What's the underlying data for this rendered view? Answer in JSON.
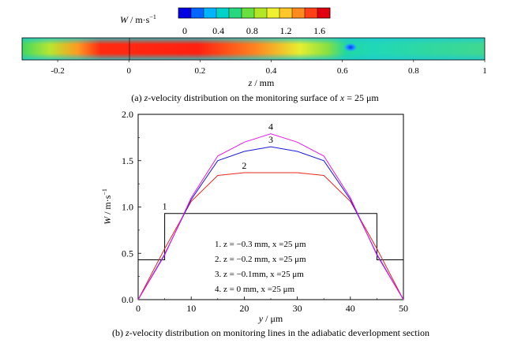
{
  "chart_data": [
    {
      "type": "heatmap",
      "caption_prefix": "(a) ",
      "caption_var": "z",
      "caption_mid": "-velocity distribution on the monitoring surface of ",
      "caption_var2": "x",
      "caption_end": " = 25 μm",
      "colorbar_label_var": "W",
      "colorbar_label_unit": " / m·s",
      "colorbar_label_exp": "−1",
      "colorbar_ticks": [
        "0",
        "0.4",
        "0.8",
        "1.2",
        "1.6"
      ],
      "colorbar_range": [
        0,
        1.8
      ],
      "colorbar_colors": [
        "#0000e0",
        "#0066ff",
        "#00b4ff",
        "#00d2c8",
        "#28d880",
        "#6ae040",
        "#b4e628",
        "#eef030",
        "#ffc828",
        "#ff8a20",
        "#ff4018",
        "#e00010"
      ],
      "xlabel_var": "z",
      "xlabel_unit": " / mm",
      "x_ticks": [
        "-0.2",
        "0",
        "0.2",
        "0.4",
        "0.6",
        "0.8",
        "1"
      ],
      "x_tick_values": [
        -0.2,
        0,
        0.2,
        0.4,
        0.6,
        0.8,
        1
      ],
      "xlim": [
        -0.3,
        1.0
      ]
    },
    {
      "type": "line",
      "caption_prefix": "(b) ",
      "caption_var": "z",
      "caption_rest": "-velocity distribution on monitoring lines in the adiabatic deverlopment section",
      "xlabel_var": "y",
      "xlabel_unit": " / μm",
      "ylabel_var": "W",
      "ylabel_unit": " / m·s",
      "ylabel_exp": "−1",
      "xlim": [
        0,
        50
      ],
      "ylim": [
        0,
        2.0
      ],
      "x_ticks": [
        "0",
        "10",
        "20",
        "30",
        "40",
        "50"
      ],
      "x_tick_values": [
        0,
        10,
        20,
        30,
        40,
        50
      ],
      "y_ticks": [
        "0.0",
        "0.5",
        "1.0",
        "1.5",
        "2.0"
      ],
      "y_tick_values": [
        0,
        0.5,
        1.0,
        1.5,
        2.0
      ],
      "legend_position": "center-bottom",
      "legend": [
        "1. z = −0.3 mm, x =25 μm",
        "2. z = −0.2 mm, x =25 μm",
        "3. z = −0.1mm, x =25 μm",
        "4. z = 0 mm, x =25 μm"
      ],
      "series": [
        {
          "name": "1",
          "color": "#000000",
          "x": [
            0,
            5,
            5,
            45,
            45,
            50
          ],
          "y": [
            0.43,
            0.43,
            0.93,
            0.93,
            0.43,
            0.43
          ]
        },
        {
          "name": "2",
          "color": "#e8281e",
          "x": [
            0,
            5,
            10,
            15,
            20,
            25,
            30,
            35,
            40,
            45,
            50
          ],
          "y": [
            0,
            0.55,
            1.06,
            1.34,
            1.37,
            1.37,
            1.37,
            1.34,
            1.06,
            0.55,
            0
          ]
        },
        {
          "name": "3",
          "color": "#1a1ad8",
          "x": [
            0,
            5,
            10,
            15,
            20,
            25,
            30,
            35,
            40,
            45,
            50
          ],
          "y": [
            0,
            0.49,
            1.08,
            1.5,
            1.6,
            1.65,
            1.6,
            1.5,
            1.08,
            0.49,
            0
          ]
        },
        {
          "name": "4",
          "color": "#e81ae8",
          "x": [
            0,
            5,
            10,
            15,
            20,
            25,
            30,
            35,
            40,
            45,
            50
          ],
          "y": [
            0,
            0.48,
            1.1,
            1.55,
            1.7,
            1.79,
            1.7,
            1.55,
            1.1,
            0.48,
            0
          ]
        }
      ]
    }
  ]
}
